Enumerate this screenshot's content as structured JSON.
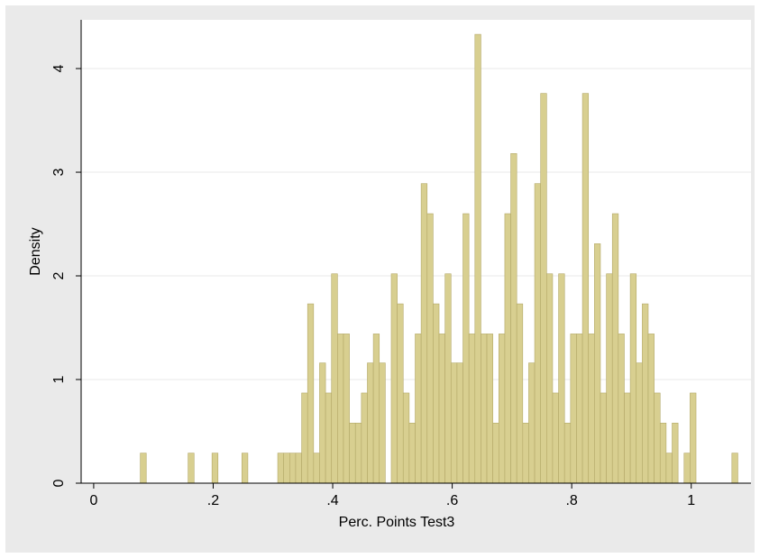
{
  "chart_data": {
    "type": "histogram",
    "xlabel": "Perc. Points Test3",
    "ylabel": "Density",
    "bins": [
      0.078,
      0.088,
      0.098,
      0.108,
      0.118,
      0.128,
      0.138,
      0.148,
      0.158,
      0.168,
      0.178,
      0.188,
      0.198,
      0.208,
      0.218,
      0.228,
      0.238,
      0.248,
      0.258,
      0.268,
      0.278,
      0.288,
      0.298,
      0.308,
      0.318,
      0.328,
      0.338,
      0.348,
      0.358,
      0.368,
      0.378,
      0.388,
      0.398,
      0.408,
      0.418,
      0.428,
      0.438,
      0.448,
      0.458,
      0.468,
      0.478,
      0.488,
      0.498,
      0.508,
      0.518,
      0.528,
      0.538,
      0.548,
      0.558,
      0.568,
      0.578,
      0.588,
      0.598,
      0.608,
      0.618,
      0.628,
      0.638,
      0.648,
      0.658,
      0.668,
      0.678,
      0.688,
      0.698,
      0.708,
      0.718,
      0.728,
      0.738,
      0.748,
      0.758,
      0.768,
      0.778,
      0.788,
      0.798,
      0.808,
      0.818,
      0.828,
      0.838,
      0.848,
      0.858,
      0.868,
      0.878,
      0.888,
      0.898,
      0.908,
      0.918,
      0.928,
      0.938,
      0.948,
      0.958,
      0.968,
      0.978,
      0.988,
      0.998,
      1.008,
      1.018,
      1.028,
      1.038,
      1.048,
      1.058,
      1.068,
      1.078
    ],
    "values": [
      0.29,
      0,
      0,
      0,
      0,
      0,
      0,
      0,
      0.29,
      0,
      0,
      0,
      0.29,
      0,
      0,
      0,
      0,
      0.29,
      0,
      0,
      0,
      0,
      0,
      0.29,
      0.29,
      0.29,
      0.29,
      0.87,
      1.73,
      0.29,
      1.16,
      0.87,
      2.02,
      1.44,
      1.44,
      0.58,
      0.58,
      0.87,
      1.16,
      1.44,
      1.16,
      0,
      2.02,
      1.73,
      0.87,
      0.58,
      1.44,
      2.89,
      2.6,
      1.73,
      1.44,
      2.02,
      1.16,
      1.16,
      2.6,
      1.44,
      4.33,
      1.44,
      1.44,
      0.58,
      1.44,
      2.6,
      3.18,
      1.73,
      0.58,
      1.16,
      2.89,
      3.76,
      2.02,
      0.87,
      2.02,
      0.58,
      1.44,
      1.44,
      3.76,
      1.44,
      2.31,
      0.87,
      2.02,
      2.6,
      1.44,
      0.87,
      2.02,
      1.16,
      1.73,
      1.44,
      0.87,
      0.58,
      0.29,
      0.58,
      0,
      0.29,
      0.87,
      0,
      0,
      0,
      0,
      0,
      0,
      0.29
    ],
    "color": "#d8cf90",
    "edgecolor": "#b3a867",
    "xlim": [
      -0.021,
      1.1
    ],
    "ylim": [
      0,
      4.47
    ],
    "xticks": [
      0,
      {
        "value": 0.2,
        "label": ".2"
      },
      {
        "value": 0.4,
        "label": ".4"
      },
      {
        "value": 0.6,
        "label": ".6"
      },
      {
        "value": 0.8,
        "label": ".8"
      },
      1
    ],
    "yticks": [
      0,
      1,
      2,
      3,
      4
    ],
    "grid": true
  }
}
